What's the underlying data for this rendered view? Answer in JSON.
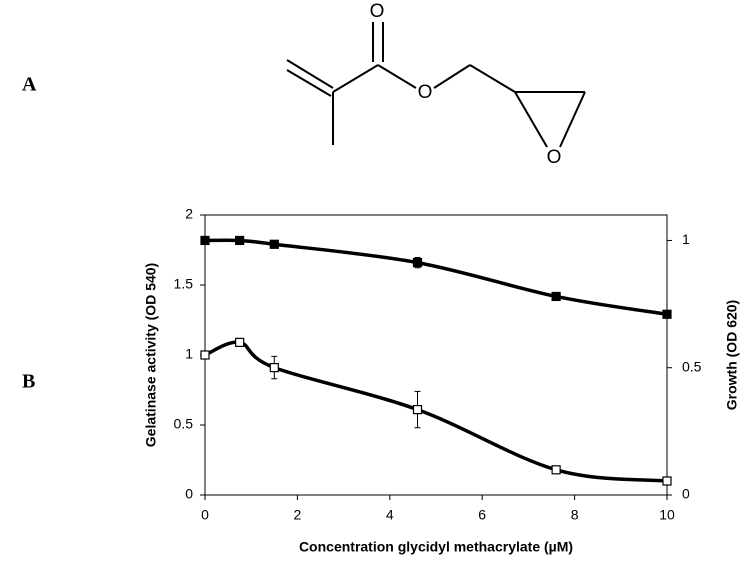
{
  "panel_labels": [
    "A",
    "B"
  ],
  "structure": {
    "atoms": [
      "O",
      "O",
      "O"
    ]
  },
  "chart_data": {
    "type": "line",
    "x_label": "Concentration glycidyl methacrylate (µM)",
    "y_label": "Gelatinase activity (OD 540)",
    "y2_label": "Growth (OD 620)",
    "x": [
      0,
      0.75,
      1.5,
      4.6,
      7.6,
      10
    ],
    "series": [
      {
        "name": "Growth",
        "axis": "y2",
        "color": "#000000",
        "marker_fill": "#000000",
        "values": [
          1.0,
          1.0,
          0.985,
          0.913,
          0.78,
          0.71
        ],
        "errors": [
          null,
          null,
          null,
          0.02,
          null,
          null
        ]
      },
      {
        "name": "Gelatinase activity",
        "color": "#000000",
        "marker_fill": "#ffffff",
        "values": [
          1.0,
          1.09,
          0.91,
          0.61,
          0.18,
          0.1
        ],
        "errors": [
          null,
          null,
          0.08,
          0.13,
          null,
          null
        ]
      }
    ],
    "xlim": [
      0,
      10
    ],
    "xticks": [
      0,
      2,
      4,
      6,
      8,
      10
    ],
    "ylim": [
      0,
      2
    ],
    "yticks": [
      0,
      0.5,
      1,
      1.5,
      2
    ],
    "y2lim": [
      0,
      1.1
    ],
    "y2ticks": [
      0,
      0.5,
      1
    ],
    "smooth": true
  }
}
